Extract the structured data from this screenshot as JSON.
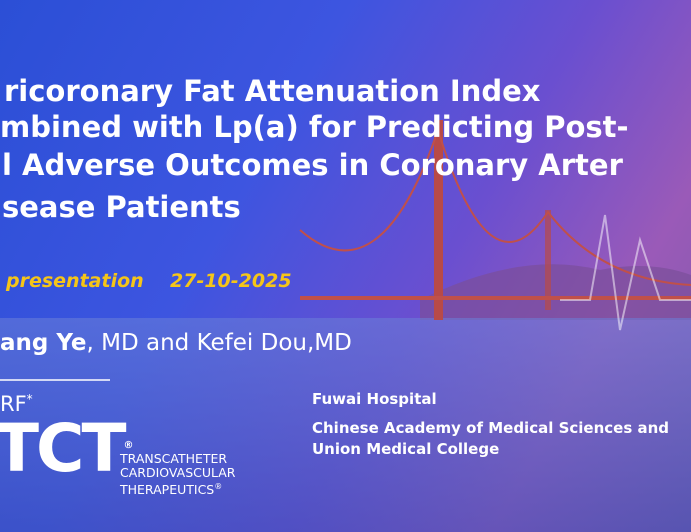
{
  "slide": {
    "title_lines": [
      "ricoronary Fat Attenuation Index",
      "mbined with Lp(a) for Predicting Post-",
      "l Adverse Outcomes in Coronary Arter",
      "sease Patients"
    ],
    "presentation_label": "presentation",
    "presentation_date": "27-10-2025",
    "author_bold": "ang Ye",
    "author_rest": ", MD and Kefei Dou,MD",
    "logo": {
      "top": "RF",
      "top_mark": "*",
      "main": "TCT",
      "main_mark": "®",
      "tagline": [
        "TRANSCATHETER",
        "CARDIOVASCULAR",
        "THERAPEUTICS"
      ],
      "tagline_mark": "®"
    },
    "affiliation": [
      "Fuwai Hospital",
      "Chinese Academy of Medical Sciences and",
      "Union Medical College"
    ]
  }
}
